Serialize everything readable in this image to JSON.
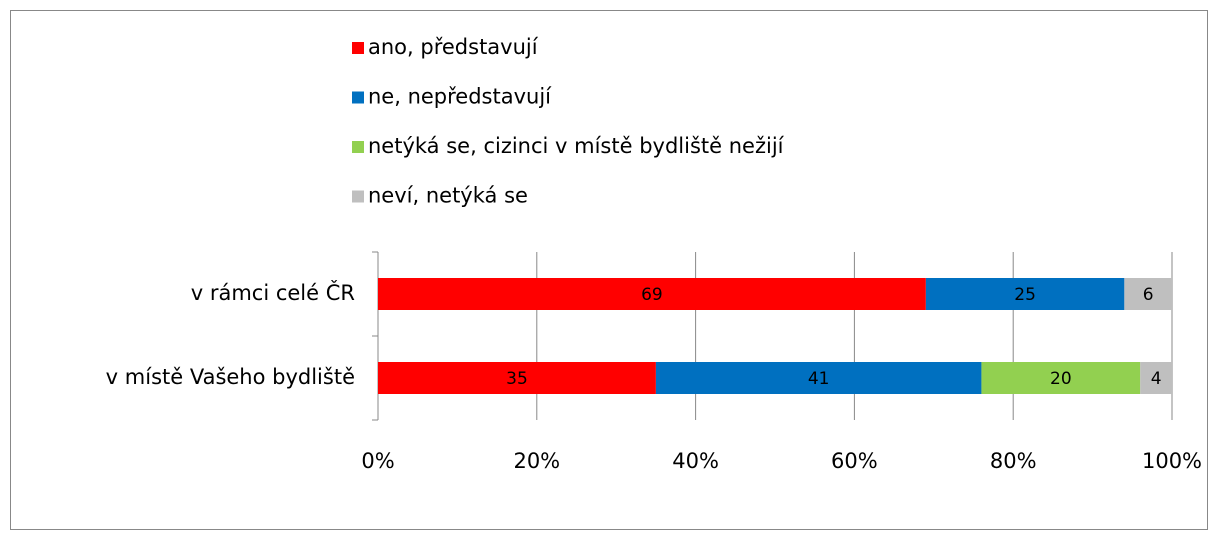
{
  "chart_data": {
    "type": "stacked-bar-horizontal",
    "categories": [
      "v rámci celé ČR",
      "v místě Vašeho bydliště"
    ],
    "series": [
      {
        "name": "ano, představují",
        "color": "#ff0000",
        "values": [
          69,
          35
        ]
      },
      {
        "name": "ne, nepředstavují",
        "color": "#0070c0",
        "values": [
          25,
          41
        ]
      },
      {
        "name": "netýká se, cizinci v místě bydliště nežijí",
        "color": "#92d050",
        "values": [
          null,
          20
        ]
      },
      {
        "name": "neví, netýká se",
        "color": "#bfbfbf",
        "values": [
          6,
          4
        ]
      }
    ],
    "xlim": [
      0,
      100
    ],
    "xticks": [
      {
        "value": 0,
        "label": "0%"
      },
      {
        "value": 20,
        "label": "20%"
      },
      {
        "value": 40,
        "label": "40%"
      },
      {
        "value": 60,
        "label": "60%"
      },
      {
        "value": 80,
        "label": "80%"
      },
      {
        "value": 100,
        "label": "100%"
      }
    ],
    "grid": true,
    "legend": "top"
  }
}
